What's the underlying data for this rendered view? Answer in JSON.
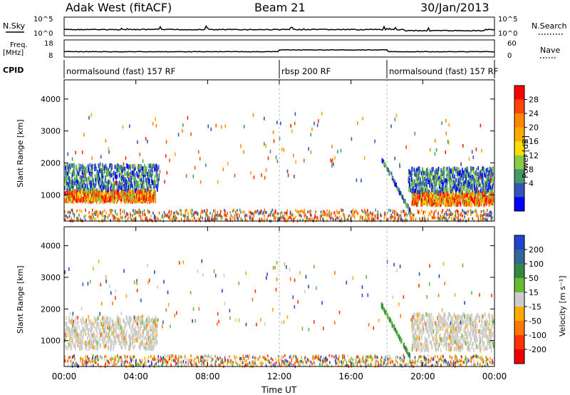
{
  "header": {
    "station": "Adak West (fitACF)",
    "beam": "Beam 21",
    "date": "30/Jan/2013"
  },
  "panels": {
    "nsky": {
      "left_label": "N.Sky",
      "right_label": "N.Search",
      "left_ticks": [
        "10^5",
        "10^0"
      ],
      "right_ticks": [
        "10^5",
        "10^0"
      ]
    },
    "freq": {
      "left_label_1": "Freq.",
      "left_label_2": "[MHz]",
      "right_label": "Nave",
      "left_ticks": [
        "18",
        "8"
      ],
      "right_ticks": [
        "60",
        "0"
      ]
    },
    "cpid": {
      "label": "CPID",
      "segments": [
        {
          "name": "normalsound (fast) 157 RF",
          "start_hour": 0,
          "end_hour": 12
        },
        {
          "name": "rbsp 200 RF",
          "start_hour": 12,
          "end_hour": 18
        },
        {
          "name": "normalsound (fast) 157 RF",
          "start_hour": 18,
          "end_hour": 24
        }
      ]
    }
  },
  "chart_data": [
    {
      "type": "heatmap",
      "title": "Power",
      "ylabel": "Slant Range [km]",
      "xlabel": "Time UT",
      "xlim": [
        0,
        24
      ],
      "ylim": [
        180,
        4600
      ],
      "x_ticks": [
        "00:00",
        "04:00",
        "08:00",
        "12:00",
        "16:00",
        "20:00",
        "00:00"
      ],
      "y_ticks": [
        1000,
        2000,
        3000,
        4000
      ],
      "colorbar_label": "Power [dB]",
      "colorbar_ticks": [
        "28",
        "24",
        "20",
        "16",
        "12",
        "8",
        "4"
      ],
      "colorbar_colors": [
        "#ff0000",
        "#ff4400",
        "#ff8800",
        "#ffaa00",
        "#ffdd00",
        "#88cc44",
        "#449966",
        "#3355bb",
        "#0000ff"
      ],
      "echo_regions": [
        {
          "name": "main ground scatter band (early)",
          "x_range": [
            0,
            5.1
          ],
          "y_range": [
            850,
            1200
          ],
          "power": "high"
        },
        {
          "name": "upper scatter band (early)",
          "x_range": [
            0,
            5.3
          ],
          "y_range": [
            1200,
            2000
          ],
          "power": "low"
        },
        {
          "name": "near-range clutter",
          "x_range": [
            0,
            24
          ],
          "y_range": [
            200,
            600
          ],
          "power": "mixed"
        },
        {
          "name": "dawn arc",
          "x_range": [
            17.7,
            19.3
          ],
          "y_range": [
            550,
            2200
          ],
          "power": "low"
        },
        {
          "name": "main ground scatter band (late)",
          "x_range": [
            19.4,
            24
          ],
          "y_range": [
            750,
            1150
          ],
          "power": "high"
        },
        {
          "name": "upper scatter band (late)",
          "x_range": [
            19.2,
            24
          ],
          "y_range": [
            1150,
            1900
          ],
          "power": "low"
        }
      ]
    },
    {
      "type": "heatmap",
      "title": "Velocity",
      "ylabel": "Slant Range [km]",
      "xlabel": "Time UT",
      "xlim": [
        0,
        24
      ],
      "ylim": [
        180,
        4600
      ],
      "x_ticks": [
        "00:00",
        "04:00",
        "08:00",
        "12:00",
        "16:00",
        "20:00",
        "00:00"
      ],
      "y_ticks": [
        1000,
        2000,
        3000,
        4000
      ],
      "colorbar_label": "Velocity [m s⁻¹]",
      "colorbar_ticks": [
        "200",
        "100",
        "50",
        "15",
        "-15",
        "-50",
        "-100",
        "-200"
      ],
      "colorbar_colors": [
        "#2244cc",
        "#336699",
        "#338844",
        "#66bb33",
        "#cccccc",
        "#ffaa00",
        "#ff7700",
        "#ff3300",
        "#ee0000"
      ],
      "echo_regions": [
        {
          "name": "ground scatter (early)",
          "x_range": [
            0,
            5.2
          ],
          "y_range": [
            800,
            1800
          ],
          "velocity": "near zero"
        },
        {
          "name": "near-range clutter",
          "x_range": [
            0,
            24
          ],
          "y_range": [
            200,
            600
          ],
          "velocity": "mixed"
        },
        {
          "name": "dawn arc",
          "x_range": [
            17.7,
            19.3
          ],
          "y_range": [
            550,
            2200
          ],
          "velocity": "positive"
        },
        {
          "name": "ground scatter (late)",
          "x_range": [
            19.4,
            24
          ],
          "y_range": [
            750,
            1900
          ],
          "velocity": "near zero"
        }
      ]
    }
  ]
}
